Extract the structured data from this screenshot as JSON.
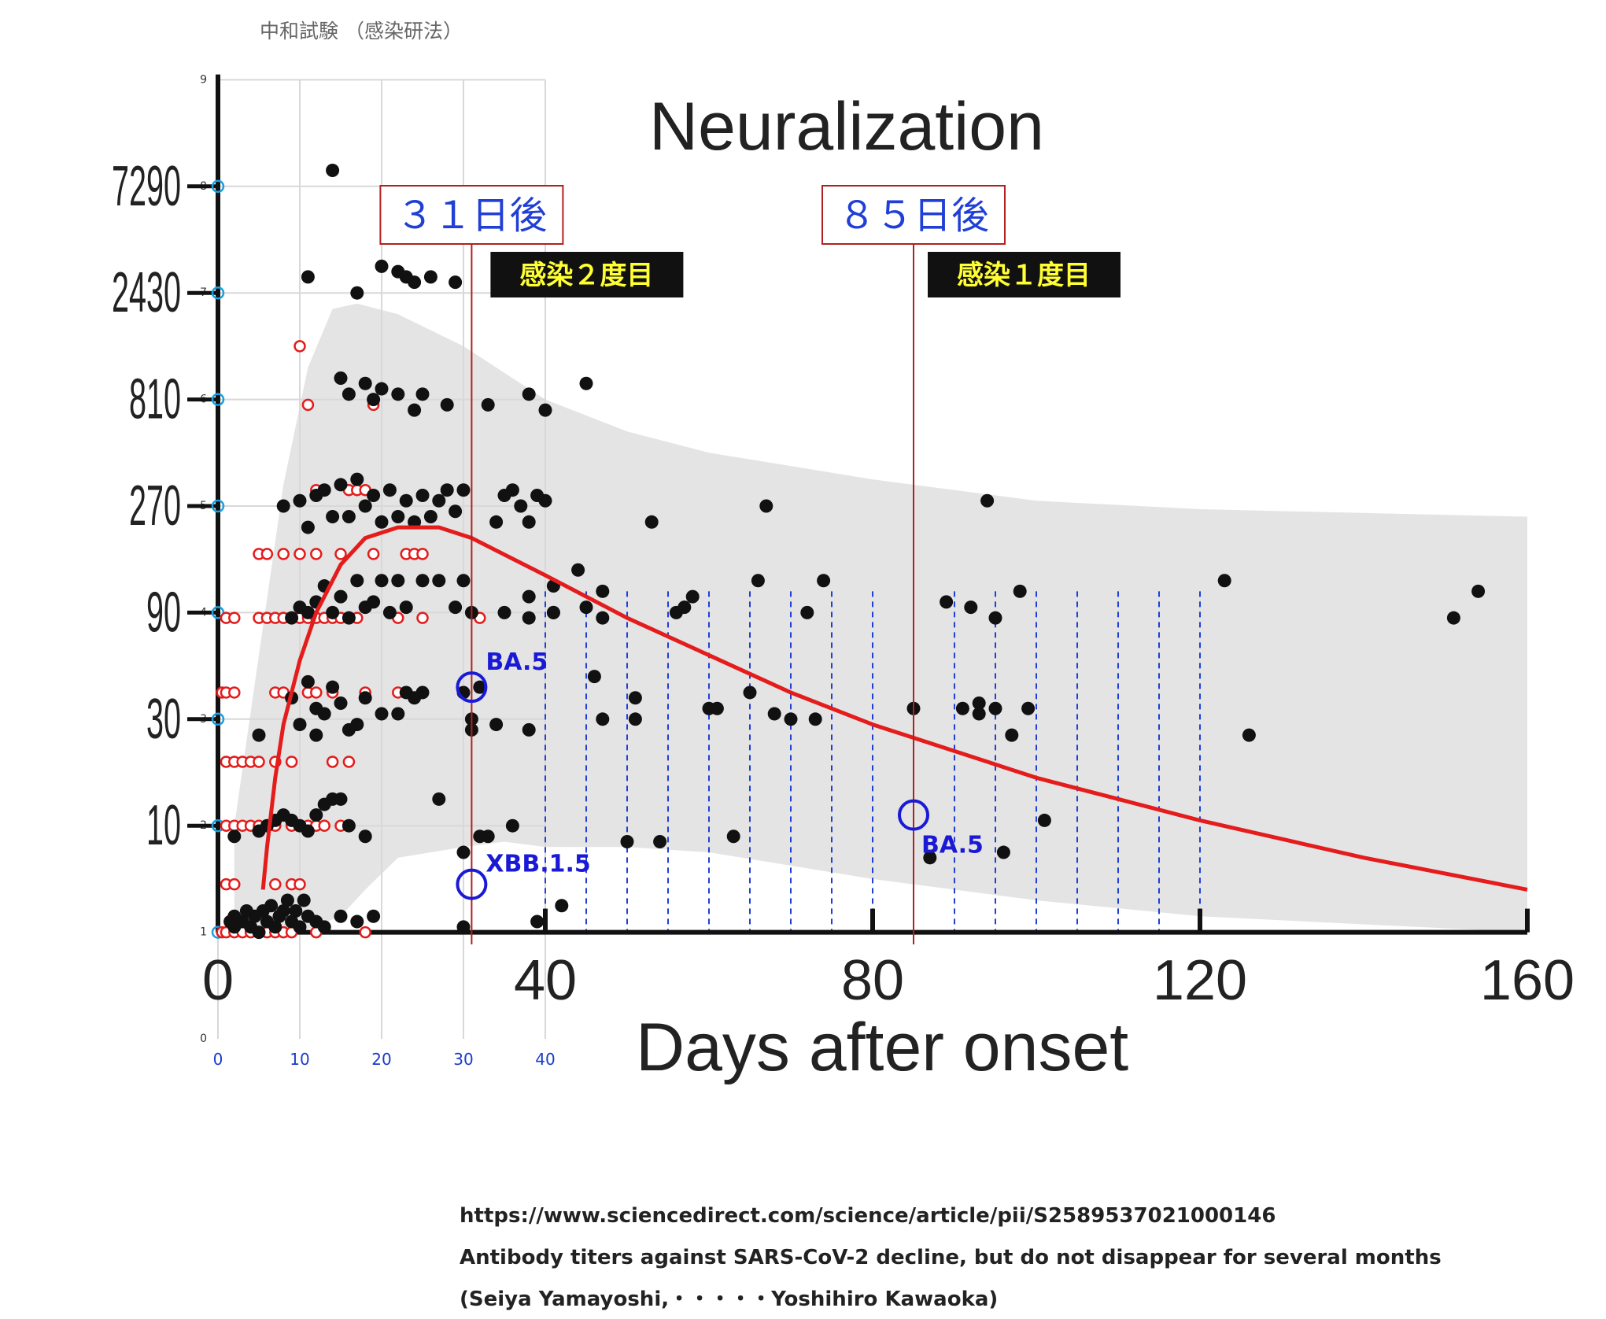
{
  "chart_data": {
    "type": "scatter",
    "top_label": "中和試験 （感染研法）",
    "title": "Neuralization",
    "xlabel": "Days after onset",
    "x_ticks_main": [
      "0",
      "40",
      "80",
      "120",
      "160"
    ],
    "x_ticks_inset": [
      "0",
      "10",
      "20",
      "30",
      "40"
    ],
    "x_range": [
      0,
      160
    ],
    "y_ticks_titer": [
      "10",
      "30",
      "90",
      "270",
      "810",
      "2430",
      "7290"
    ],
    "y_ticks_index": [
      "0",
      "1",
      "2",
      "3",
      "4",
      "5",
      "6",
      "7",
      "8",
      "9"
    ],
    "y_range_index": [
      0,
      9
    ],
    "grid": true,
    "dashed_gridline_days": [
      40,
      45,
      50,
      55,
      60,
      65,
      70,
      75,
      80,
      90,
      95,
      100,
      105,
      110,
      115,
      120
    ],
    "markers": [
      {
        "day": 31,
        "label": "３１日後",
        "badge": "感染２度目"
      },
      {
        "day": 85,
        "label": "８５日後",
        "badge": "感染１度目"
      }
    ],
    "highlight_points": [
      {
        "label": "BA.5",
        "day": 31,
        "log_titer": 3.3
      },
      {
        "label": "XBB.1.5",
        "day": 31,
        "log_titer": 1.45
      },
      {
        "label": "BA.5",
        "day": 85,
        "log_titer": 2.1
      }
    ],
    "fit_curve": [
      [
        5.5,
        1.4
      ],
      [
        6,
        1.8
      ],
      [
        7,
        2.45
      ],
      [
        8,
        2.95
      ],
      [
        10,
        3.55
      ],
      [
        12,
        4.0
      ],
      [
        15,
        4.45
      ],
      [
        18,
        4.7
      ],
      [
        22,
        4.8
      ],
      [
        27,
        4.8
      ],
      [
        31,
        4.7
      ],
      [
        40,
        4.35
      ],
      [
        50,
        3.95
      ],
      [
        60,
        3.6
      ],
      [
        70,
        3.25
      ],
      [
        80,
        2.95
      ],
      [
        90,
        2.7
      ],
      [
        100,
        2.45
      ],
      [
        110,
        2.25
      ],
      [
        120,
        2.05
      ],
      [
        140,
        1.7
      ],
      [
        160,
        1.4
      ]
    ],
    "band_upper": [
      [
        2,
        2.0
      ],
      [
        5,
        3.6
      ],
      [
        8,
        5.2
      ],
      [
        11,
        6.3
      ],
      [
        14,
        6.85
      ],
      [
        17,
        6.9
      ],
      [
        22,
        6.8
      ],
      [
        30,
        6.5
      ],
      [
        40,
        6.0
      ],
      [
        50,
        5.7
      ],
      [
        60,
        5.5
      ],
      [
        80,
        5.25
      ],
      [
        100,
        5.05
      ],
      [
        120,
        4.97
      ],
      [
        160,
        4.9
      ]
    ],
    "band_lower": [
      [
        2,
        1.0
      ],
      [
        10,
        1.0
      ],
      [
        15,
        1.15
      ],
      [
        18,
        1.4
      ],
      [
        22,
        1.7
      ],
      [
        30,
        1.8
      ],
      [
        35,
        1.85
      ],
      [
        40,
        1.8
      ],
      [
        50,
        1.8
      ],
      [
        60,
        1.75
      ],
      [
        80,
        1.5
      ],
      [
        100,
        1.3
      ],
      [
        120,
        1.15
      ],
      [
        160,
        1.0
      ]
    ],
    "series_black": [
      [
        1.5,
        1.1
      ],
      [
        2,
        1.05
      ],
      [
        2,
        1.15
      ],
      [
        3,
        1.1
      ],
      [
        3.5,
        1.2
      ],
      [
        4,
        1.05
      ],
      [
        4.5,
        1.15
      ],
      [
        5,
        1.0
      ],
      [
        5.5,
        1.2
      ],
      [
        6,
        1.1
      ],
      [
        6.5,
        1.25
      ],
      [
        7,
        1.05
      ],
      [
        7.5,
        1.15
      ],
      [
        8,
        1.2
      ],
      [
        8.5,
        1.3
      ],
      [
        9,
        1.1
      ],
      [
        9.5,
        1.2
      ],
      [
        10,
        1.05
      ],
      [
        10.5,
        1.3
      ],
      [
        11,
        1.15
      ],
      [
        12,
        1.1
      ],
      [
        13,
        1.05
      ],
      [
        15,
        1.15
      ],
      [
        17,
        1.1
      ],
      [
        19,
        1.15
      ],
      [
        30,
        1.05
      ],
      [
        39,
        1.1
      ],
      [
        2,
        1.9
      ],
      [
        5,
        1.95
      ],
      [
        6,
        2.0
      ],
      [
        7,
        2.05
      ],
      [
        8,
        2.1
      ],
      [
        9,
        2.05
      ],
      [
        10,
        2.0
      ],
      [
        11,
        1.95
      ],
      [
        12,
        2.1
      ],
      [
        13,
        2.2
      ],
      [
        14,
        2.25
      ],
      [
        15,
        2.25
      ],
      [
        16,
        2.0
      ],
      [
        18,
        1.9
      ],
      [
        27,
        2.25
      ],
      [
        30,
        1.75
      ],
      [
        32,
        1.9
      ],
      [
        33,
        1.9
      ],
      [
        36,
        2.0
      ],
      [
        5,
        2.85
      ],
      [
        9,
        3.2
      ],
      [
        10,
        2.95
      ],
      [
        11,
        3.35
      ],
      [
        12,
        3.1
      ],
      [
        12,
        2.85
      ],
      [
        13,
        3.05
      ],
      [
        14,
        3.3
      ],
      [
        15,
        3.15
      ],
      [
        16,
        2.9
      ],
      [
        17,
        2.95
      ],
      [
        18,
        3.2
      ],
      [
        20,
        3.05
      ],
      [
        22,
        3.05
      ],
      [
        23,
        3.25
      ],
      [
        24,
        3.2
      ],
      [
        25,
        3.25
      ],
      [
        30,
        3.25
      ],
      [
        31,
        3.0
      ],
      [
        31,
        2.9
      ],
      [
        32,
        3.3
      ],
      [
        34,
        2.95
      ],
      [
        38,
        2.9
      ],
      [
        9,
        3.95
      ],
      [
        10,
        4.05
      ],
      [
        11,
        4.0
      ],
      [
        12,
        4.1
      ],
      [
        13,
        4.25
      ],
      [
        14,
        4.0
      ],
      [
        15,
        4.15
      ],
      [
        16,
        3.95
      ],
      [
        17,
        4.3
      ],
      [
        18,
        4.05
      ],
      [
        19,
        4.1
      ],
      [
        20,
        4.3
      ],
      [
        21,
        4.0
      ],
      [
        22,
        4.3
      ],
      [
        23,
        4.05
      ],
      [
        25,
        4.3
      ],
      [
        27,
        4.3
      ],
      [
        29,
        4.05
      ],
      [
        30,
        4.3
      ],
      [
        31,
        4.0
      ],
      [
        35,
        4.0
      ],
      [
        38,
        3.95
      ],
      [
        38,
        4.15
      ],
      [
        41,
        4.0
      ],
      [
        41,
        4.25
      ],
      [
        44,
        4.4
      ],
      [
        47,
        3.95
      ],
      [
        47,
        4.2
      ],
      [
        8,
        5.0
      ],
      [
        10,
        5.05
      ],
      [
        11,
        4.8
      ],
      [
        12,
        5.1
      ],
      [
        13,
        5.15
      ],
      [
        14,
        4.9
      ],
      [
        15,
        5.2
      ],
      [
        16,
        4.9
      ],
      [
        17,
        5.25
      ],
      [
        18,
        5.0
      ],
      [
        19,
        5.1
      ],
      [
        20,
        4.85
      ],
      [
        21,
        5.15
      ],
      [
        22,
        4.9
      ],
      [
        23,
        5.05
      ],
      [
        24,
        4.85
      ],
      [
        25,
        5.1
      ],
      [
        26,
        4.9
      ],
      [
        27,
        5.05
      ],
      [
        28,
        5.15
      ],
      [
        29,
        4.95
      ],
      [
        30,
        5.15
      ],
      [
        34,
        4.85
      ],
      [
        35,
        5.1
      ],
      [
        36,
        5.15
      ],
      [
        37,
        5.0
      ],
      [
        38,
        4.85
      ],
      [
        39,
        5.1
      ],
      [
        40,
        5.05
      ],
      [
        15,
        6.2
      ],
      [
        16,
        6.05
      ],
      [
        18,
        6.15
      ],
      [
        19,
        6.0
      ],
      [
        20,
        6.1
      ],
      [
        22,
        6.05
      ],
      [
        24,
        5.9
      ],
      [
        25,
        6.05
      ],
      [
        28,
        5.95
      ],
      [
        33,
        5.95
      ],
      [
        38,
        6.05
      ],
      [
        40,
        5.9
      ],
      [
        45,
        6.15
      ],
      [
        11,
        7.15
      ],
      [
        14,
        8.15
      ],
      [
        17,
        7.0
      ],
      [
        20,
        7.25
      ],
      [
        22,
        7.2
      ],
      [
        23,
        7.15
      ],
      [
        24,
        7.1
      ],
      [
        26,
        7.15
      ],
      [
        29,
        7.1
      ],
      [
        41,
        4.0
      ],
      [
        42,
        1.25
      ],
      [
        45,
        4.05
      ],
      [
        46,
        3.4
      ],
      [
        47,
        3.0
      ],
      [
        50,
        1.85
      ],
      [
        51,
        3.0
      ],
      [
        51,
        3.2
      ],
      [
        53,
        4.85
      ],
      [
        54,
        1.85
      ],
      [
        56,
        4.0
      ],
      [
        57,
        4.05
      ],
      [
        58,
        4.15
      ],
      [
        60,
        3.1
      ],
      [
        61,
        3.1
      ],
      [
        63,
        1.9
      ],
      [
        65,
        3.25
      ],
      [
        66,
        4.3
      ],
      [
        67,
        5.0
      ],
      [
        68,
        3.05
      ],
      [
        70,
        3.0
      ],
      [
        72,
        4.0
      ],
      [
        73,
        3.0
      ],
      [
        74,
        4.3
      ],
      [
        85,
        3.1
      ],
      [
        87,
        1.7
      ],
      [
        89,
        4.1
      ],
      [
        91,
        3.1
      ],
      [
        92,
        4.05
      ],
      [
        93,
        3.15
      ],
      [
        93,
        3.05
      ],
      [
        94,
        5.05
      ],
      [
        95,
        3.1
      ],
      [
        95,
        3.95
      ],
      [
        96,
        1.75
      ],
      [
        97,
        2.85
      ],
      [
        98,
        4.2
      ],
      [
        99,
        3.1
      ],
      [
        101,
        2.05
      ],
      [
        123,
        4.3
      ],
      [
        126,
        2.85
      ],
      [
        151,
        3.95
      ],
      [
        154,
        4.2
      ]
    ],
    "series_red_open": [
      [
        0.5,
        1.0
      ],
      [
        1,
        1.0
      ],
      [
        2,
        1.0
      ],
      [
        3,
        1.0
      ],
      [
        4,
        1.0
      ],
      [
        5,
        1.0
      ],
      [
        6,
        1.0
      ],
      [
        7,
        1.0
      ],
      [
        8,
        1.0
      ],
      [
        9,
        1.0
      ],
      [
        12,
        1.0
      ],
      [
        18,
        1.0
      ],
      [
        1,
        1.45
      ],
      [
        2,
        1.45
      ],
      [
        7,
        1.45
      ],
      [
        9,
        1.45
      ],
      [
        10,
        1.45
      ],
      [
        1,
        2.0
      ],
      [
        2,
        2.0
      ],
      [
        3,
        2.0
      ],
      [
        4,
        2.0
      ],
      [
        5,
        2.0
      ],
      [
        6,
        2.0
      ],
      [
        7,
        2.0
      ],
      [
        9,
        2.0
      ],
      [
        10,
        2.0
      ],
      [
        11,
        2.0
      ],
      [
        12,
        2.0
      ],
      [
        13,
        2.0
      ],
      [
        15,
        2.0
      ],
      [
        16,
        2.0
      ],
      [
        1,
        2.6
      ],
      [
        2,
        2.6
      ],
      [
        3,
        2.6
      ],
      [
        4,
        2.6
      ],
      [
        5,
        2.6
      ],
      [
        7,
        2.6
      ],
      [
        9,
        2.6
      ],
      [
        14,
        2.6
      ],
      [
        16,
        2.6
      ],
      [
        0.5,
        3.25
      ],
      [
        1,
        3.25
      ],
      [
        2,
        3.25
      ],
      [
        7,
        3.25
      ],
      [
        8,
        3.25
      ],
      [
        11,
        3.25
      ],
      [
        12,
        3.25
      ],
      [
        14,
        3.25
      ],
      [
        18,
        3.25
      ],
      [
        22,
        3.25
      ],
      [
        23,
        3.25
      ],
      [
        1,
        3.95
      ],
      [
        2,
        3.95
      ],
      [
        5,
        3.95
      ],
      [
        6,
        3.95
      ],
      [
        7,
        3.95
      ],
      [
        8,
        3.95
      ],
      [
        9,
        3.95
      ],
      [
        10,
        3.95
      ],
      [
        11,
        3.95
      ],
      [
        12,
        3.95
      ],
      [
        13,
        3.95
      ],
      [
        14,
        3.95
      ],
      [
        15,
        3.95
      ],
      [
        17,
        3.95
      ],
      [
        22,
        3.95
      ],
      [
        25,
        3.95
      ],
      [
        32,
        3.95
      ],
      [
        5,
        4.55
      ],
      [
        6,
        4.55
      ],
      [
        8,
        4.55
      ],
      [
        10,
        4.55
      ],
      [
        12,
        4.55
      ],
      [
        15,
        4.55
      ],
      [
        19,
        4.55
      ],
      [
        23,
        4.55
      ],
      [
        24,
        4.55
      ],
      [
        25,
        4.55
      ],
      [
        12,
        5.15
      ],
      [
        13,
        5.15
      ],
      [
        16,
        5.15
      ],
      [
        17,
        5.15
      ],
      [
        18,
        5.15
      ],
      [
        21,
        5.15
      ],
      [
        11,
        5.95
      ],
      [
        19,
        5.95
      ],
      [
        10,
        6.5
      ]
    ]
  },
  "footer": {
    "url": "https://www.sciencedirect.com/science/article/pii/S2589537021000146",
    "article_title": "Antibody titers against SARS-CoV-2 decline, but do not disappear for several months",
    "authors": "(Seiya Yamayoshi,・・・・・Yoshihiro Kawaoka)"
  }
}
